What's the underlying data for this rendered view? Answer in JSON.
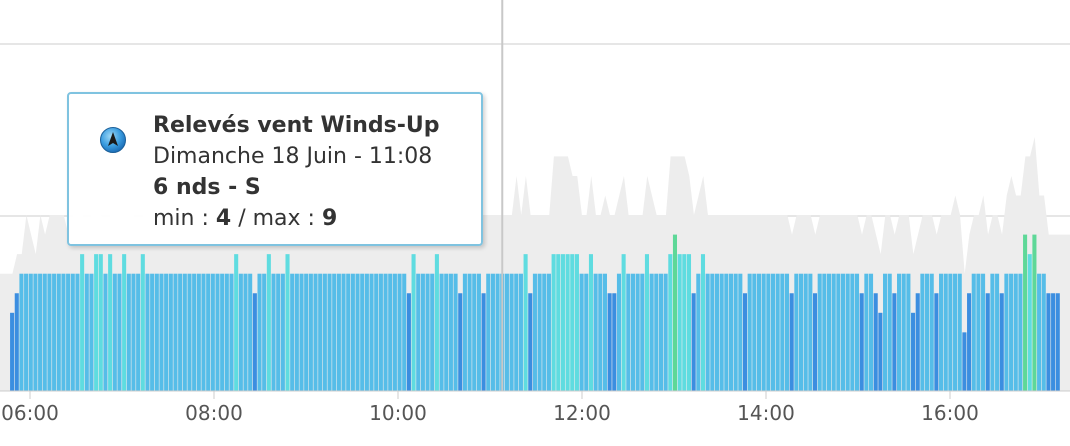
{
  "tooltip": {
    "title": "Relevés vent Winds-Up",
    "date": "Dimanche 18 Juin - 11:08",
    "speed_line": "6 nds - S",
    "min_label": "min : ",
    "min_value": "4",
    "sep": " / max : ",
    "max_value": "9",
    "icon": "wind-direction-arrow-icon"
  },
  "colors": {
    "light_wind": "#3b8ee0",
    "medium_wind": "#56bde8",
    "strong_wind": "#5fdce0",
    "green_wind": "#5ed898",
    "gust_area": "#ededed",
    "crosshair": "#c8c8c8"
  },
  "chart_data": {
    "type": "bar",
    "x_ticks": [
      "06:00",
      "08:00",
      "10:00",
      "12:00",
      "14:00",
      "16:00"
    ],
    "x_range": [
      "05:47",
      "17:12"
    ],
    "hover_time": "11:08",
    "series": [
      {
        "values": [
          4,
          5,
          6,
          6,
          6,
          6,
          6,
          6,
          6,
          6,
          6,
          6,
          6,
          6,
          6,
          7,
          6,
          6,
          7,
          7,
          6,
          7,
          6,
          6,
          7,
          6,
          6,
          6,
          7,
          6,
          6,
          6,
          6,
          6,
          6,
          6,
          6,
          6,
          6,
          6,
          6,
          6,
          6,
          6,
          6,
          6,
          6,
          6,
          7,
          6,
          6,
          6,
          5,
          6,
          6,
          7,
          6,
          6,
          6,
          7,
          6,
          6,
          6,
          6,
          6,
          6,
          6,
          6,
          6,
          6,
          6,
          6,
          6,
          6,
          6,
          6,
          6,
          6,
          6,
          6,
          6,
          6,
          6,
          6,
          6,
          5,
          7,
          6,
          6,
          6,
          6,
          7,
          6,
          6,
          6,
          6,
          5,
          6,
          6,
          6,
          6,
          5,
          6,
          6,
          6,
          6,
          6,
          6,
          6,
          6,
          7,
          5,
          6,
          6,
          6,
          6,
          7,
          7,
          7,
          7,
          7,
          7,
          6,
          6,
          7,
          6,
          6,
          6,
          5,
          5,
          6,
          7,
          6,
          6,
          6,
          6,
          7,
          6,
          6,
          6,
          6,
          7,
          8,
          7,
          7,
          7,
          5,
          6,
          7,
          6,
          6,
          6,
          6,
          6,
          6,
          6,
          6,
          5,
          6,
          6,
          6,
          6,
          6,
          6,
          6,
          6,
          6,
          5,
          6,
          6,
          6,
          6,
          5,
          6,
          6,
          6,
          6,
          6,
          6,
          6,
          6,
          6,
          5,
          6,
          6,
          5,
          4,
          6,
          6,
          5,
          6,
          6,
          6,
          4,
          5,
          6,
          6,
          6,
          5,
          6,
          6,
          6,
          6,
          6,
          3,
          5,
          6,
          6,
          6,
          5,
          6,
          6,
          5,
          6,
          6,
          6,
          6,
          8,
          7,
          8,
          6,
          6,
          5,
          5,
          5
        ]
      }
    ],
    "gusts": [
      6,
      7,
      7,
      9,
      8,
      7,
      9,
      8,
      9,
      9,
      9,
      9,
      8,
      9,
      9,
      9,
      8,
      9,
      9,
      9,
      8,
      9,
      9,
      9,
      9,
      10,
      9,
      8,
      9,
      9,
      9,
      9,
      9,
      9,
      9,
      9,
      9,
      10,
      11,
      9,
      9,
      9,
      9,
      10,
      11,
      10,
      9,
      8,
      11,
      9,
      9,
      9,
      8,
      9,
      9,
      10,
      9,
      9,
      9,
      11,
      10,
      9,
      9,
      9,
      9,
      9,
      9,
      9,
      9,
      9,
      9,
      9,
      9,
      9,
      9,
      10,
      9,
      9,
      9,
      9,
      9,
      10,
      9,
      9,
      9,
      9,
      11,
      9,
      9,
      9,
      10,
      12,
      9,
      10,
      11,
      10,
      9,
      9,
      9,
      9,
      9,
      9,
      9,
      9,
      9,
      9,
      9,
      9,
      11,
      9,
      11,
      9,
      9,
      9,
      9,
      9,
      12,
      12,
      12,
      12,
      11,
      11,
      9,
      9,
      11,
      9,
      9,
      10,
      9,
      9,
      10,
      11,
      9,
      9,
      9,
      9,
      11,
      10,
      9,
      9,
      9,
      12,
      12,
      12,
      12,
      11,
      9,
      10,
      11,
      9,
      9,
      9,
      9,
      9,
      9,
      9,
      9,
      9,
      9,
      9,
      9,
      9,
      9,
      9,
      9,
      9,
      9,
      8,
      9,
      9,
      9,
      9,
      8,
      9,
      9,
      9,
      9,
      9,
      9,
      9,
      9,
      9,
      8,
      9,
      9,
      8,
      7,
      9,
      9,
      8,
      9,
      9,
      9,
      7,
      8,
      9,
      9,
      9,
      8,
      9,
      9,
      9,
      10,
      9,
      6,
      8,
      9,
      9,
      10,
      8,
      9,
      9,
      8,
      10,
      11,
      10,
      10,
      12,
      12,
      13,
      10,
      10,
      8,
      8,
      8
    ],
    "ylim": [
      0,
      20
    ],
    "grid": true
  }
}
